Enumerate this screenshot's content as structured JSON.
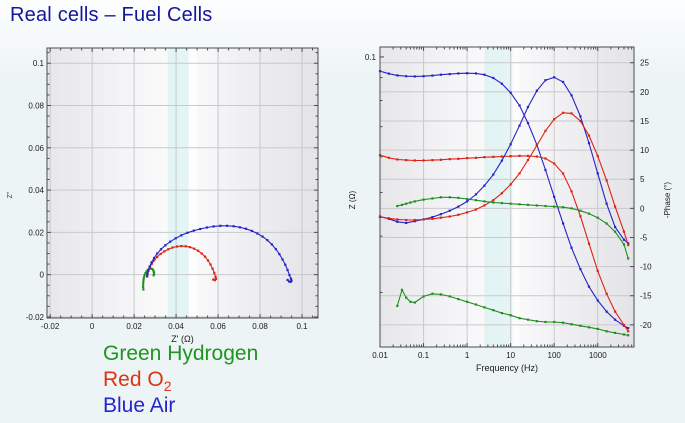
{
  "page": {
    "title": "Real cells – Fuel Cells",
    "title_color": "#15159a",
    "background": "#edf4f6"
  },
  "legend": {
    "items": [
      {
        "label": "Green Hydrogen",
        "color": "#1f941f"
      },
      {
        "label": "Red O",
        "sub": "2",
        "color": "#e03214"
      },
      {
        "label": "Blue Air",
        "color": "#2525cc"
      }
    ]
  },
  "colors": {
    "hydrogen": "#1f8f1f",
    "oxygen": "#dd2211",
    "air": "#2424c8",
    "grid": "#c9c9cd",
    "axis": "#4d4d4d",
    "tick_text": "#1a1a1a",
    "band_cyan": "#cdeeee",
    "band_white": "#ffffff"
  },
  "chart_data": [
    {
      "type": "scatter",
      "name": "nyquist",
      "xlabel": "Z' (Ω)",
      "ylabel": "Z''",
      "xlim": [
        -0.0215,
        0.1076
      ],
      "ylim": [
        -0.0205,
        0.1072
      ],
      "xticks": [
        -0.02,
        0,
        0.02,
        0.04,
        0.06,
        0.08,
        0.1
      ],
      "yticks": [
        -0.02,
        0,
        0.02,
        0.04,
        0.06,
        0.08,
        0.1
      ],
      "minor_step": 0.005,
      "grid": true,
      "bands": [
        {
          "from": 0.036,
          "to": 0.046,
          "color": "band_cyan",
          "opacity": 0.55
        },
        {
          "from": 0.046,
          "to": 0.05,
          "color": "band_white",
          "opacity": 0.6
        }
      ],
      "series": [
        {
          "name": "hydrogen-nyquist",
          "color": "hydrogen",
          "points": [
            [
              0.0244,
              -0.007
            ],
            [
              0.0243,
              -0.0058
            ],
            [
              0.0243,
              -0.0046
            ],
            [
              0.0244,
              -0.0034
            ],
            [
              0.0245,
              -0.0023
            ],
            [
              0.0247,
              -0.0012
            ],
            [
              0.025,
              -0.0002
            ],
            [
              0.0254,
              0.0007
            ],
            [
              0.0259,
              0.0015
            ],
            [
              0.0265,
              0.0022
            ],
            [
              0.0272,
              0.0027
            ],
            [
              0.0279,
              0.0029
            ],
            [
              0.0286,
              0.0027
            ],
            [
              0.0291,
              0.0021
            ],
            [
              0.0294,
              0.0013
            ],
            [
              0.0295,
              0.0004
            ],
            [
              0.0293,
              -0.0003
            ]
          ]
        },
        {
          "name": "oxygen-nyquist",
          "color": "oxygen",
          "points": [
            [
              0.0262,
              -0.0008
            ],
            [
              0.0264,
              0.0004
            ],
            [
              0.0268,
              0.0018
            ],
            [
              0.0275,
              0.0034
            ],
            [
              0.0284,
              0.0051
            ],
            [
              0.0296,
              0.0068
            ],
            [
              0.031,
              0.0084
            ],
            [
              0.0326,
              0.0098
            ],
            [
              0.0344,
              0.011
            ],
            [
              0.0363,
              0.012
            ],
            [
              0.0383,
              0.0128
            ],
            [
              0.0404,
              0.0133
            ],
            [
              0.0425,
              0.0135
            ],
            [
              0.0446,
              0.0134
            ],
            [
              0.0466,
              0.013
            ],
            [
              0.0486,
              0.0123
            ],
            [
              0.0505,
              0.0113
            ],
            [
              0.0522,
              0.01
            ],
            [
              0.0538,
              0.0085
            ],
            [
              0.0552,
              0.0067
            ],
            [
              0.0564,
              0.0048
            ],
            [
              0.0574,
              0.0028
            ],
            [
              0.0582,
              0.0008
            ],
            [
              0.0588,
              -0.001
            ],
            [
              0.059,
              -0.002
            ],
            [
              0.0585,
              -0.0026
            ],
            [
              0.0577,
              -0.0023
            ]
          ]
        },
        {
          "name": "air-nyquist",
          "color": "air",
          "points": [
            [
              0.0262,
              -0.0008
            ],
            [
              0.0264,
              0.0005
            ],
            [
              0.0268,
              0.002
            ],
            [
              0.0274,
              0.0038
            ],
            [
              0.0283,
              0.0058
            ],
            [
              0.0295,
              0.0079
            ],
            [
              0.031,
              0.01
            ],
            [
              0.0328,
              0.012
            ],
            [
              0.0349,
              0.0139
            ],
            [
              0.0372,
              0.0156
            ],
            [
              0.0398,
              0.0172
            ],
            [
              0.0425,
              0.0186
            ],
            [
              0.0454,
              0.0198
            ],
            [
              0.0484,
              0.0208
            ],
            [
              0.0515,
              0.0216
            ],
            [
              0.0547,
              0.0223
            ],
            [
              0.0579,
              0.0228
            ],
            [
              0.0611,
              0.0231
            ],
            [
              0.0643,
              0.0231
            ],
            [
              0.0674,
              0.0229
            ],
            [
              0.0704,
              0.0224
            ],
            [
              0.0733,
              0.0217
            ],
            [
              0.0761,
              0.0207
            ],
            [
              0.0787,
              0.0195
            ],
            [
              0.0812,
              0.018
            ],
            [
              0.0835,
              0.0163
            ],
            [
              0.0856,
              0.0143
            ],
            [
              0.0875,
              0.0121
            ],
            [
              0.0892,
              0.0097
            ],
            [
              0.0907,
              0.0072
            ],
            [
              0.092,
              0.0047
            ],
            [
              0.0931,
              0.0022
            ],
            [
              0.094,
              -0.0002
            ],
            [
              0.0947,
              -0.0019
            ],
            [
              0.095,
              -0.0028
            ],
            [
              0.0946,
              -0.0034
            ],
            [
              0.0938,
              -0.0032
            ],
            [
              0.0931,
              -0.0025
            ]
          ]
        }
      ]
    },
    {
      "type": "line",
      "name": "bode",
      "xlabel": "Frequency (Hz)",
      "ylabel_left": "Z (Ω)",
      "ylabel_right": "-Phase (°)",
      "xscale": "log",
      "xlim": [
        0.01,
        6800
      ],
      "xticks": [
        0.01,
        0.1,
        1,
        10,
        100,
        1000
      ],
      "zscale": "log",
      "zlim": [
        0.0227,
        0.1052
      ],
      "zticks": [
        0.1
      ],
      "ztick_labels": [
        "0.1"
      ],
      "z_minor_ticks": [
        0.09,
        0.08,
        0.07,
        0.06,
        0.05,
        0.04,
        0.03
      ],
      "phase_lim": [
        -23.8,
        27.7
      ],
      "phase_ticks": [
        25,
        20,
        15,
        10,
        5,
        0,
        -5,
        -10,
        -15,
        -20
      ],
      "grid": true,
      "bands": [
        {
          "from": 2.5,
          "to": 11,
          "color": "band_cyan",
          "opacity": 0.5
        },
        {
          "from": 11,
          "to": 16,
          "color": "band_white",
          "opacity": 0.55
        }
      ],
      "frequencies": [
        0.01,
        0.016,
        0.025,
        0.04,
        0.063,
        0.1,
        0.16,
        0.25,
        0.4,
        0.63,
        1,
        1.6,
        2.5,
        4,
        6.3,
        10,
        16,
        25,
        40,
        63,
        100,
        160,
        250,
        400,
        630,
        1000,
        1600,
        2500,
        4000,
        5000
      ],
      "h2_frequencies": [
        0.025,
        0.032,
        0.04,
        0.05,
        0.063,
        0.1,
        0.16,
        0.25,
        0.4,
        0.63,
        1,
        1.6,
        2.5,
        4,
        6.3,
        10,
        16,
        25,
        40,
        63,
        100,
        160,
        250,
        400,
        630,
        1000,
        1600,
        2500,
        4000,
        5000
      ],
      "series": [
        {
          "name": "air-impedance",
          "axis": "z",
          "color": "air",
          "x": "frequencies",
          "y": [
            0.093,
            0.0918,
            0.091,
            0.0906,
            0.0905,
            0.0906,
            0.0909,
            0.0913,
            0.0916,
            0.0919,
            0.092,
            0.0919,
            0.0913,
            0.0898,
            0.0872,
            0.0833,
            0.078,
            0.0713,
            0.0638,
            0.0561,
            0.0489,
            0.0427,
            0.0377,
            0.0338,
            0.0309,
            0.0288,
            0.0272,
            0.0261,
            0.0253,
            0.025
          ]
        },
        {
          "name": "oxygen-impedance",
          "axis": "z",
          "color": "oxygen",
          "x": "frequencies",
          "y": [
            0.0605,
            0.0597,
            0.0592,
            0.059,
            0.0589,
            0.0589,
            0.059,
            0.0591,
            0.0593,
            0.0594,
            0.0596,
            0.0597,
            0.0599,
            0.06,
            0.0601,
            0.0602,
            0.0603,
            0.0603,
            0.0601,
            0.0595,
            0.058,
            0.0551,
            0.0503,
            0.0443,
            0.0385,
            0.0335,
            0.0298,
            0.0272,
            0.0254,
            0.0246
          ]
        },
        {
          "name": "hydrogen-impedance",
          "axis": "z",
          "color": "hydrogen",
          "x": "h2_frequencies",
          "y": [
            0.028,
            0.0304,
            0.0292,
            0.0286,
            0.0285,
            0.0294,
            0.0298,
            0.0297,
            0.0294,
            0.029,
            0.0286,
            0.0282,
            0.0278,
            0.0274,
            0.027,
            0.0267,
            0.0263,
            0.0261,
            0.0259,
            0.0258,
            0.0258,
            0.0257,
            0.0255,
            0.0253,
            0.0251,
            0.0249,
            0.0246,
            0.0244,
            0.0242,
            0.0241
          ]
        },
        {
          "name": "air-phase",
          "axis": "phase",
          "color": "air",
          "x": "frequencies",
          "y": [
            -1.4,
            -1.8,
            -2.3,
            -2.5,
            -2.2,
            -1.9,
            -1.5,
            -1.0,
            -0.4,
            0.3,
            1.2,
            2.4,
            3.9,
            5.8,
            8.2,
            11.0,
            14.2,
            17.4,
            20.2,
            22.0,
            22.5,
            21.7,
            19.4,
            15.8,
            11.2,
            6.0,
            0.8,
            -3.2,
            -5.4,
            -6.0
          ]
        },
        {
          "name": "oxygen-phase",
          "axis": "phase",
          "color": "oxygen",
          "x": "frequencies",
          "y": [
            -1.5,
            -1.7,
            -1.9,
            -2.0,
            -2.0,
            -1.9,
            -1.8,
            -1.6,
            -1.4,
            -1.1,
            -0.7,
            -0.2,
            0.5,
            1.4,
            2.6,
            4.1,
            6.0,
            8.3,
            10.8,
            13.3,
            15.3,
            16.4,
            16.3,
            15.0,
            12.5,
            9.0,
            4.8,
            0.3,
            -4.0,
            -6.3
          ]
        },
        {
          "name": "hydrogen-phase",
          "axis": "phase",
          "color": "hydrogen",
          "x": "h2_frequencies",
          "y": [
            0.4,
            0.6,
            0.8,
            1.0,
            1.2,
            1.5,
            1.7,
            1.9,
            1.9,
            1.8,
            1.6,
            1.4,
            1.2,
            1.0,
            0.9,
            0.8,
            0.7,
            0.6,
            0.5,
            0.4,
            0.3,
            0.2,
            0.0,
            -0.4,
            -0.9,
            -1.6,
            -2.6,
            -4.0,
            -6.2,
            -8.6
          ]
        }
      ]
    }
  ]
}
